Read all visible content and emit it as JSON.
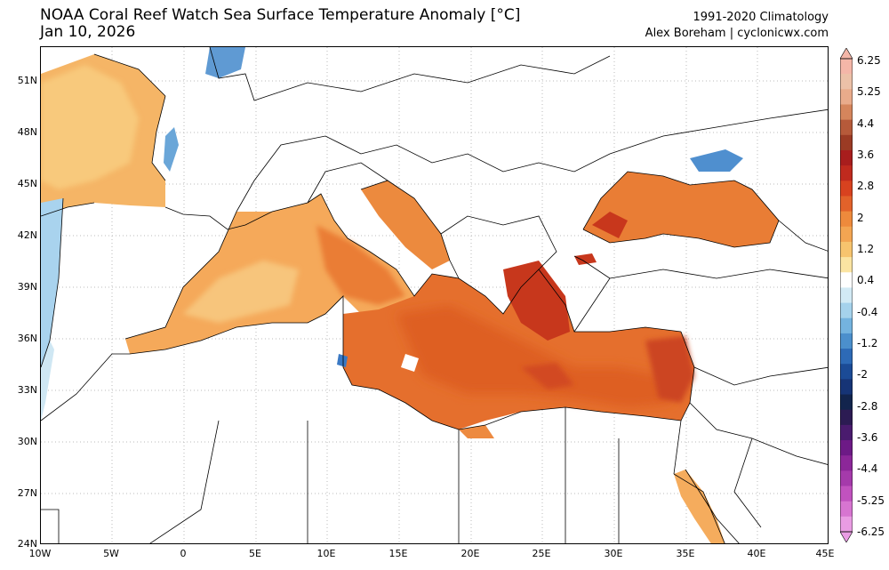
{
  "title": {
    "line1": "NOAA Coral Reef Watch Sea Surface Temperature Anomaly [°C]",
    "line2": "Jan 10, 2026",
    "climatology": "1991-2020 Climatology",
    "credit": "Alex Boreham | cyclonicwx.com"
  },
  "axes": {
    "lat_ticks": [
      "51N",
      "48N",
      "45N",
      "42N",
      "39N",
      "36N",
      "33N",
      "30N",
      "27N",
      "24N"
    ],
    "lon_ticks": [
      "10W",
      "5W",
      "0",
      "5E",
      "10E",
      "15E",
      "20E",
      "25E",
      "30E",
      "35E",
      "40E",
      "45E"
    ]
  },
  "colorbar": {
    "labels": [
      "6.25",
      "5.25",
      "4.4",
      "3.6",
      "2.8",
      "2",
      "1.2",
      "0.4",
      "-0.4",
      "-1.2",
      "-2",
      "-2.8",
      "-3.6",
      "-4.4",
      "-5.25",
      "-6.25"
    ],
    "colors": [
      "#f4b6a8",
      "#ecc1a8",
      "#e9ab8b",
      "#d5855c",
      "#b65a3a",
      "#9b3b24",
      "#a81d1d",
      "#c02a1e",
      "#d8421f",
      "#e2622a",
      "#ee8a3c",
      "#f3a552",
      "#f7c46e",
      "#fbe4a2",
      "#ffffff",
      "#d2eaf5",
      "#a5d2ec",
      "#74b3df",
      "#4b8fcc",
      "#2d6ab6",
      "#1b4b96",
      "#163476",
      "#12244d",
      "#2c1b53",
      "#4a1b6e",
      "#6d1a86",
      "#8c2799",
      "#a53aab",
      "#c152bf",
      "#d775d1",
      "#e99ce3"
    ],
    "colors_meaning": "from +6.25 (top) to -6.25 (bottom)"
  },
  "colors": {
    "warm_strong": "#c03a1c",
    "warm_mid": "#e8702f",
    "warm_light": "#f3a75a",
    "warm_pale": "#f8cf85",
    "cool_light": "#a9d3ee",
    "cool_strong": "#3a79c4",
    "border": "#000000"
  }
}
